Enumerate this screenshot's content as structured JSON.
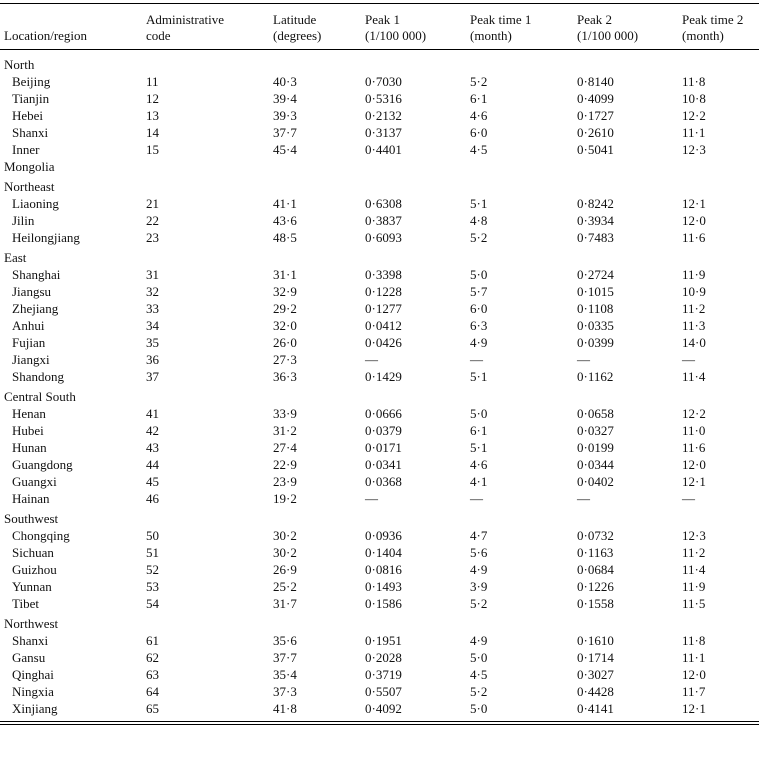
{
  "table": {
    "headers": [
      [
        "Location/region"
      ],
      [
        "Administrative",
        "code"
      ],
      [
        "Latitude",
        "(degrees)"
      ],
      [
        "Peak 1",
        "(1/100 000)"
      ],
      [
        "Peak time 1",
        "(month)"
      ],
      [
        "Peak 2",
        "(1/100 000)"
      ],
      [
        "Peak time 2",
        "(month)"
      ]
    ],
    "groups": [
      {
        "name": "North",
        "rows": [
          [
            "Beijing",
            "11",
            "40·3",
            "0·7030",
            "5·2",
            "0·8140",
            "11·8"
          ],
          [
            "Tianjin",
            "12",
            "39·4",
            "0·5316",
            "6·1",
            "0·4099",
            "10·8"
          ],
          [
            "Hebei",
            "13",
            "39·3",
            "0·2132",
            "4·6",
            "0·1727",
            "12·2"
          ],
          [
            "Shanxi",
            "14",
            "37·7",
            "0·3137",
            "6·0",
            "0·2610",
            "11·1"
          ],
          [
            "Inner Mongolia",
            "15",
            "45·4",
            "0·4401",
            "4·5",
            "0·5041",
            "12·3"
          ]
        ]
      },
      {
        "name": "Northeast",
        "rows": [
          [
            "Liaoning",
            "21",
            "41·1",
            "0·6308",
            "5·1",
            "0·8242",
            "12·1"
          ],
          [
            "Jilin",
            "22",
            "43·6",
            "0·3837",
            "4·8",
            "0·3934",
            "12·0"
          ],
          [
            "Heilongjiang",
            "23",
            "48·5",
            "0·6093",
            "5·2",
            "0·7483",
            "11·6"
          ]
        ]
      },
      {
        "name": "East",
        "rows": [
          [
            "Shanghai",
            "31",
            "31·1",
            "0·3398",
            "5·0",
            "0·2724",
            "11·9"
          ],
          [
            "Jiangsu",
            "32",
            "32·9",
            "0·1228",
            "5·7",
            "0·1015",
            "10·9"
          ],
          [
            "Zhejiang",
            "33",
            "29·2",
            "0·1277",
            "6·0",
            "0·1108",
            "11·2"
          ],
          [
            "Anhui",
            "34",
            "32·0",
            "0·0412",
            "6·3",
            "0·0335",
            "11·3"
          ],
          [
            "Fujian",
            "35",
            "26·0",
            "0·0426",
            "4·9",
            "0·0399",
            "14·0"
          ],
          [
            "Jiangxi",
            "36",
            "27·3",
            "—",
            "—",
            "—",
            "—"
          ],
          [
            "Shandong",
            "37",
            "36·3",
            "0·1429",
            "5·1",
            "0·1162",
            "11·4"
          ]
        ]
      },
      {
        "name": "Central South",
        "rows": [
          [
            "Henan",
            "41",
            "33·9",
            "0·0666",
            "5·0",
            "0·0658",
            "12·2"
          ],
          [
            "Hubei",
            "42",
            "31·2",
            "0·0379",
            "6·1",
            "0·0327",
            "11·0"
          ],
          [
            "Hunan",
            "43",
            "27·4",
            "0·0171",
            "5·1",
            "0·0199",
            "11·6"
          ],
          [
            "Guangdong",
            "44",
            "22·9",
            "0·0341",
            "4·6",
            "0·0344",
            "12·0"
          ],
          [
            "Guangxi",
            "45",
            "23·9",
            "0·0368",
            "4·1",
            "0·0402",
            "12·1"
          ],
          [
            "Hainan",
            "46",
            "19·2",
            "—",
            "—",
            "—",
            "—"
          ]
        ]
      },
      {
        "name": "Southwest",
        "rows": [
          [
            "Chongqing",
            "50",
            "30·2",
            "0·0936",
            "4·7",
            "0·0732",
            "12·3"
          ],
          [
            "Sichuan",
            "51",
            "30·2",
            "0·1404",
            "5·6",
            "0·1163",
            "11·2"
          ],
          [
            "Guizhou",
            "52",
            "26·9",
            "0·0816",
            "4·9",
            "0·0684",
            "11·4"
          ],
          [
            "Yunnan",
            "53",
            "25·2",
            "0·1493",
            "3·9",
            "0·1226",
            "11·9"
          ],
          [
            "Tibet",
            "54",
            "31·7",
            "0·1586",
            "5·2",
            "0·1558",
            "11·5"
          ]
        ]
      },
      {
        "name": "Northwest",
        "rows": [
          [
            "Shanxi",
            "61",
            "35·6",
            "0·1951",
            "4·9",
            "0·1610",
            "11·8"
          ],
          [
            "Gansu",
            "62",
            "37·7",
            "0·2028",
            "5·0",
            "0·1714",
            "11·1"
          ],
          [
            "Qinghai",
            "63",
            "35·4",
            "0·3719",
            "4·5",
            "0·3027",
            "12·0"
          ],
          [
            "Ningxia",
            "64",
            "37·3",
            "0·5507",
            "5·2",
            "0·4428",
            "11·7"
          ],
          [
            "Xinjiang",
            "65",
            "41·8",
            "0·4092",
            "5·0",
            "0·4141",
            "12·1"
          ]
        ]
      }
    ]
  }
}
